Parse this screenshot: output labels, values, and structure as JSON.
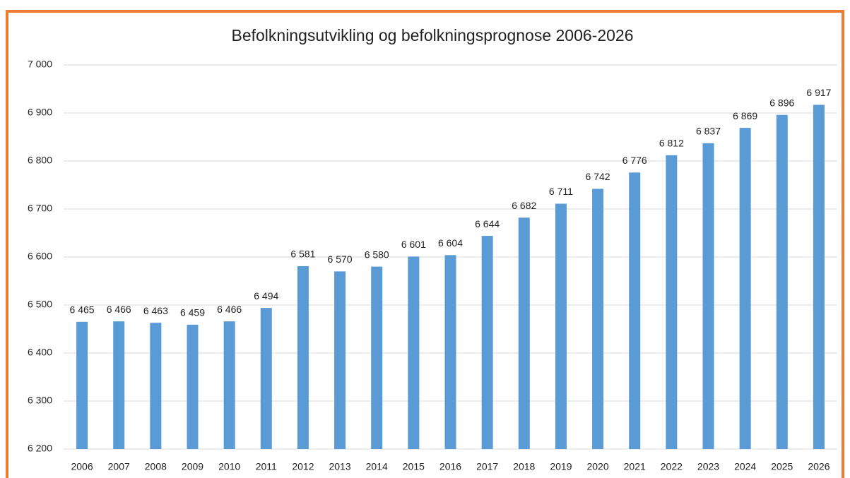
{
  "chart_data": {
    "type": "bar",
    "title": "Befolkningsutvikling og befolkningsprognose 2006-2026",
    "categories": [
      "2006",
      "2007",
      "2008",
      "2009",
      "2010",
      "2011",
      "2012",
      "2013",
      "2014",
      "2015",
      "2016",
      "2017",
      "2018",
      "2019",
      "2020",
      "2021",
      "2022",
      "2023",
      "2024",
      "2025",
      "2026"
    ],
    "values": [
      6465,
      6466,
      6463,
      6459,
      6466,
      6494,
      6581,
      6570,
      6580,
      6601,
      6604,
      6644,
      6682,
      6711,
      6742,
      6776,
      6812,
      6837,
      6869,
      6896,
      6917
    ],
    "value_labels": [
      "6 465",
      "6 466",
      "6 463",
      "6 459",
      "6 466",
      "6 494",
      "6 581",
      "6 570",
      "6 580",
      "6 601",
      "6 604",
      "6 644",
      "6 682",
      "6 711",
      "6 742",
      "6 776",
      "6 812",
      "6 837",
      "6 869",
      "6 896",
      "6 917"
    ],
    "color": "#5b9bd5",
    "ylim": [
      6200,
      7000
    ],
    "yticks": [
      {
        "value": 6200,
        "label": "6 200"
      },
      {
        "value": 6300,
        "label": "6 300"
      },
      {
        "value": 6400,
        "label": "6 400"
      },
      {
        "value": 6500,
        "label": "6 500"
      },
      {
        "value": 6600,
        "label": "6 600"
      },
      {
        "value": 6700,
        "label": "6 700"
      },
      {
        "value": 6800,
        "label": "6 800"
      },
      {
        "value": 6900,
        "label": "6 900"
      },
      {
        "value": 7000,
        "label": "7 000"
      }
    ],
    "grid": true
  }
}
